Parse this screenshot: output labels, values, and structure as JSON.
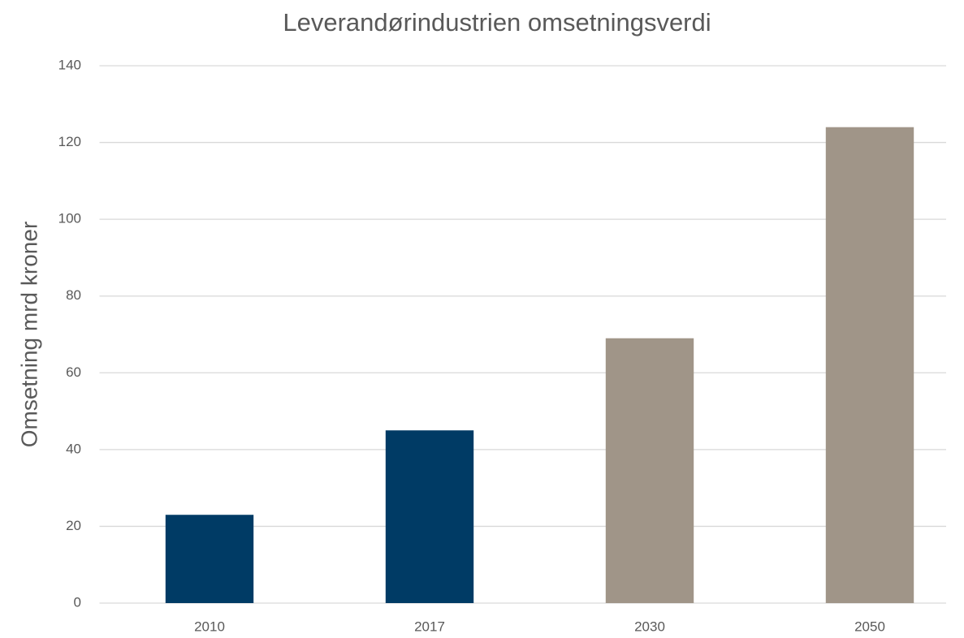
{
  "chart_data": {
    "type": "bar",
    "title": "Leverandørindustrien omsetningsverdi",
    "y_label": "Omsetning mrd kroner",
    "categories": [
      "2010",
      "2017",
      "2030",
      "2050"
    ],
    "values": [
      23,
      45,
      69,
      124
    ],
    "colors": [
      "#003b65",
      "#003b65",
      "#a09588",
      "#a09588"
    ],
    "ylim": [
      0,
      140
    ],
    "yticks": [
      0,
      20,
      40,
      60,
      80,
      100,
      120,
      140
    ],
    "grid": true
  }
}
